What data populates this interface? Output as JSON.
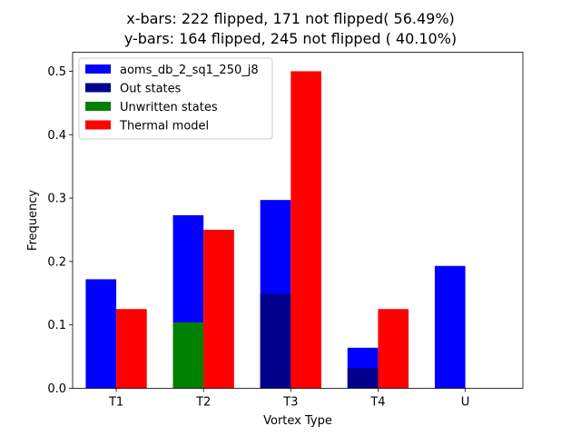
{
  "chart_data": {
    "type": "bar",
    "title_lines": [
      "x-bars: 222 flipped, 171 not flipped( 56.49%)",
      "y-bars: 164 flipped, 245 not flipped ( 40.10%)"
    ],
    "xlabel": "Vortex Type",
    "ylabel": "Frequency",
    "categories": [
      "T1",
      "T2",
      "T3",
      "T4",
      "U"
    ],
    "ylim": [
      0,
      0.53
    ],
    "yticks": [
      "0.0",
      "0.1",
      "0.2",
      "0.3",
      "0.4",
      "0.5"
    ],
    "ytick_values": [
      0,
      0.1,
      0.2,
      0.3,
      0.4,
      0.5
    ],
    "legend_placement": "top-left",
    "grid": false,
    "series": [
      {
        "name": "aoms_db_2_sq1_250_j8",
        "color": "#0000ff",
        "slot": "left",
        "values": [
          0.172,
          0.273,
          0.297,
          0.064,
          0.193
        ]
      },
      {
        "name": "Out states",
        "color": "#00008b",
        "slot": "left",
        "values": [
          0,
          0,
          0.149,
          0.032,
          0
        ]
      },
      {
        "name": "Unwritten states",
        "color": "#008000",
        "slot": "left",
        "values": [
          0,
          0.104,
          0,
          0,
          0
        ]
      },
      {
        "name": "Thermal model",
        "color": "#ff0000",
        "slot": "right",
        "values": [
          0.125,
          0.25,
          0.5,
          0.125,
          0
        ]
      }
    ]
  }
}
